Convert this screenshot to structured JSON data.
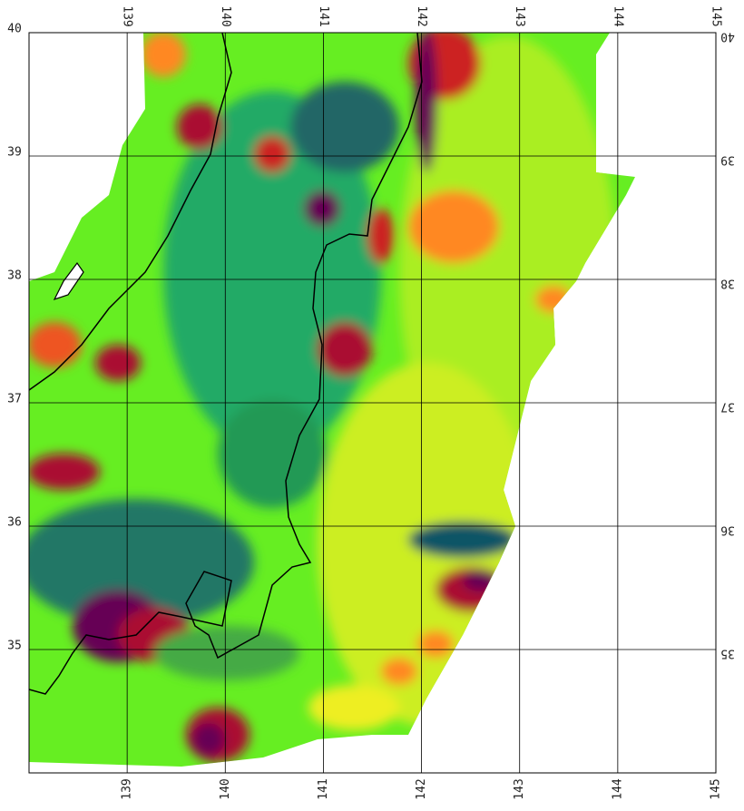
{
  "map": {
    "lon_range": [
      138,
      145
    ],
    "lat_range": [
      34,
      40
    ],
    "lon_ticks": [
      139,
      140,
      141,
      142,
      143,
      144,
      145
    ],
    "lat_ticks": [
      35,
      36,
      37,
      38,
      39,
      40
    ]
  }
}
